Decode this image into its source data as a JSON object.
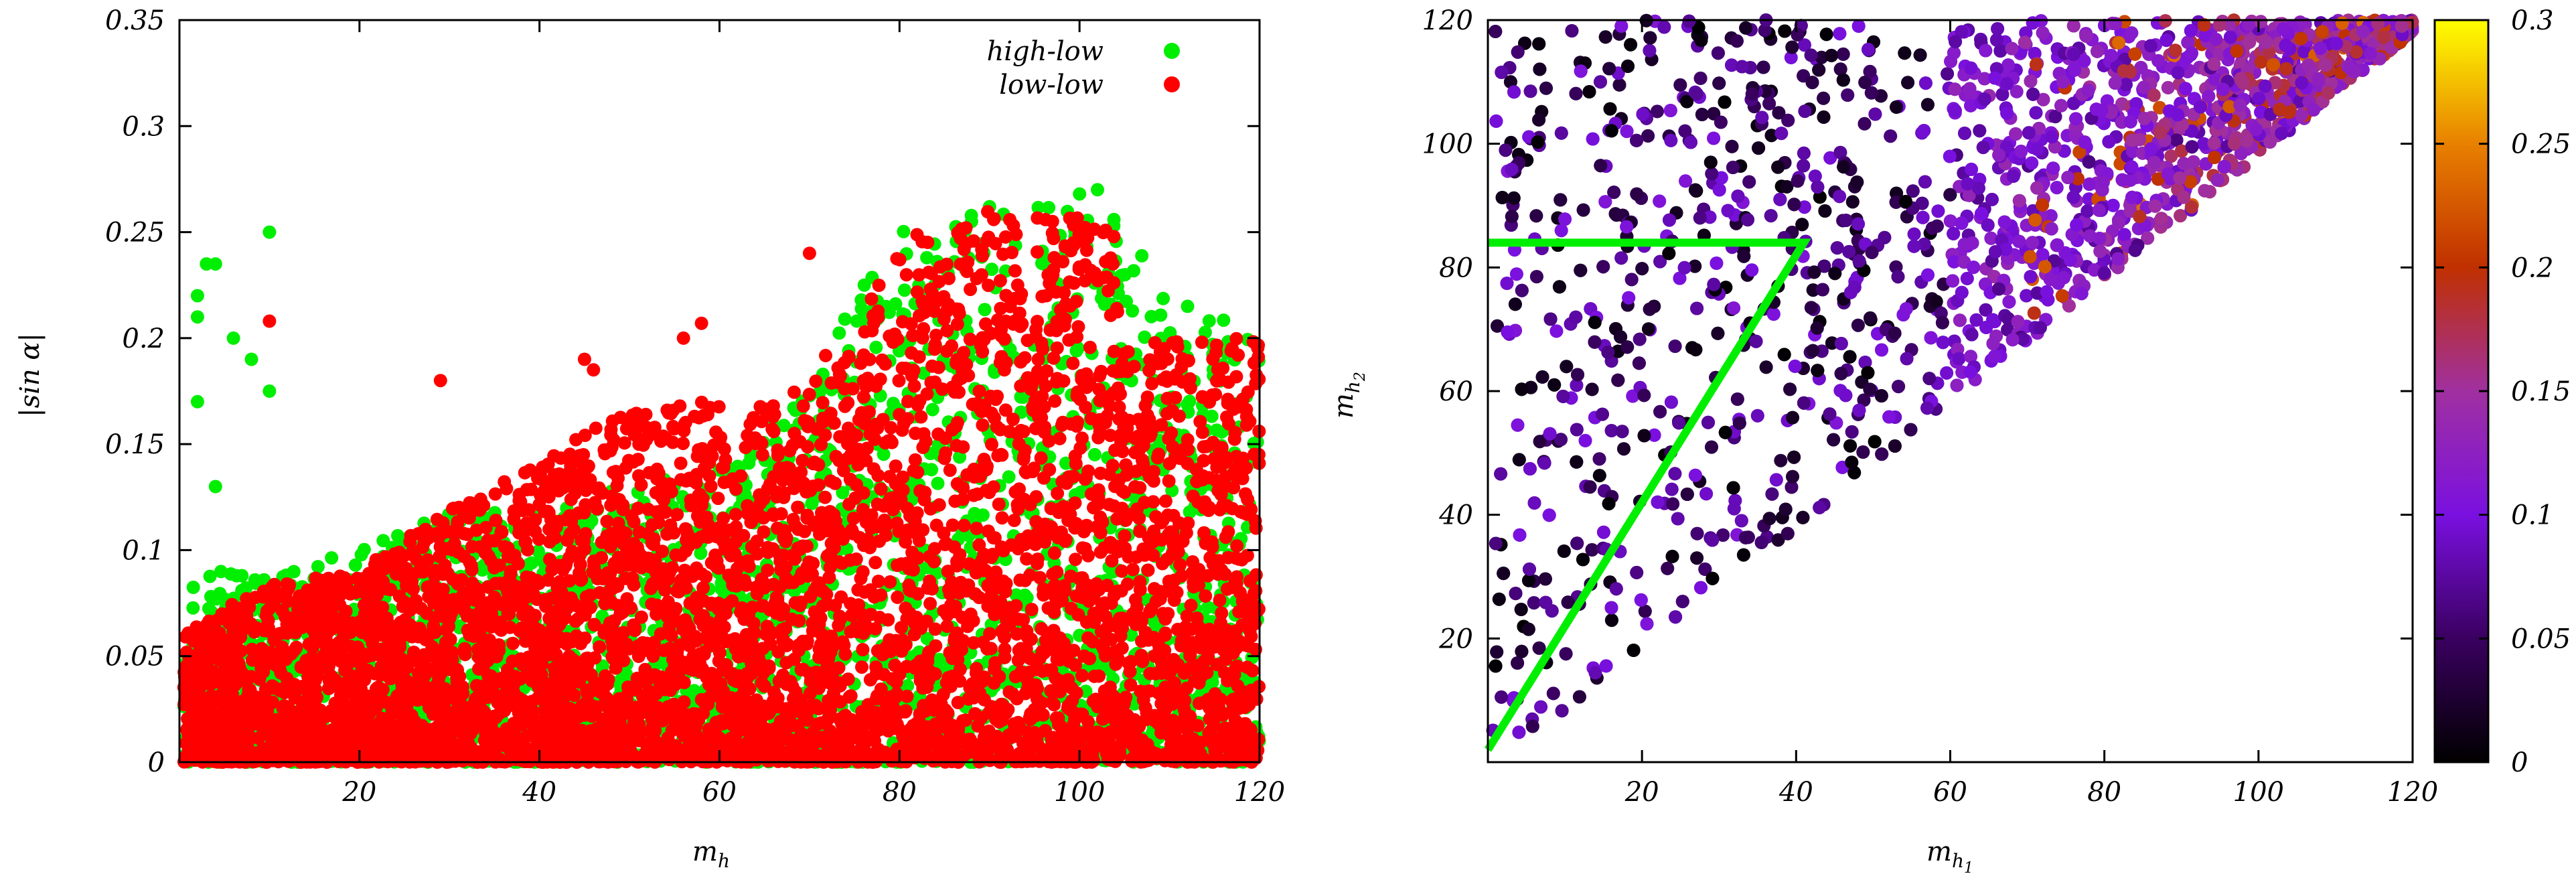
{
  "chart_data": [
    {
      "type": "scatter",
      "xlabel": "m",
      "xlabel_sub": "h",
      "ylabel": "|sin α|",
      "xlim": [
        0,
        120
      ],
      "ylim": [
        0,
        0.35
      ],
      "xticks": [
        "20",
        "40",
        "60",
        "80",
        "100",
        "120"
      ],
      "yticks": [
        "0",
        "0.05",
        "0.1",
        "0.15",
        "0.2",
        "0.25",
        "0.3",
        "0.35"
      ],
      "legend_position": "top-right",
      "series": [
        {
          "name": "high-low",
          "color": "#00ee00",
          "outliers": [
            [
              10,
              0.25
            ],
            [
              3,
              0.235
            ],
            [
              4,
              0.235
            ],
            [
              2,
              0.22
            ],
            [
              2,
              0.21
            ],
            [
              6,
              0.2
            ],
            [
              8,
              0.19
            ],
            [
              10,
              0.175
            ],
            [
              2,
              0.17
            ],
            [
              4,
              0.13
            ],
            [
              100,
              0.268
            ],
            [
              102,
              0.27
            ],
            [
              90,
              0.262
            ],
            [
              112,
              0.215
            ],
            [
              88,
              0.255
            ]
          ],
          "envelope": [
            [
              0,
              0.09
            ],
            [
              10,
              0.09
            ],
            [
              20,
              0.1
            ],
            [
              30,
              0.12
            ],
            [
              40,
              0.12
            ],
            [
              50,
              0.13
            ],
            [
              60,
              0.14
            ],
            [
              63,
              0.14
            ],
            [
              65,
              0.16
            ],
            [
              70,
              0.18
            ],
            [
              75,
              0.22
            ],
            [
              80,
              0.25
            ],
            [
              90,
              0.26
            ],
            [
              100,
              0.265
            ],
            [
              105,
              0.255
            ],
            [
              110,
              0.215
            ],
            [
              120,
              0.21
            ]
          ]
        },
        {
          "name": "low-low",
          "color": "#ff0000",
          "outliers": [
            [
              10,
              0.208
            ],
            [
              29,
              0.18
            ],
            [
              46,
              0.185
            ],
            [
              45,
              0.19
            ],
            [
              56,
              0.2
            ],
            [
              58,
              0.207
            ],
            [
              70,
              0.24
            ],
            [
              97,
              0.255
            ]
          ],
          "envelope": [
            [
              0,
              0.06
            ],
            [
              10,
              0.085
            ],
            [
              20,
              0.09
            ],
            [
              30,
              0.12
            ],
            [
              40,
              0.14
            ],
            [
              50,
              0.17
            ],
            [
              60,
              0.17
            ],
            [
              62,
              0.13
            ],
            [
              63,
              0.165
            ],
            [
              70,
              0.18
            ],
            [
              75,
              0.215
            ],
            [
              80,
              0.245
            ],
            [
              85,
              0.255
            ],
            [
              90,
              0.26
            ],
            [
              100,
              0.26
            ],
            [
              104,
              0.25
            ],
            [
              105,
              0.2
            ],
            [
              110,
              0.2
            ],
            [
              120,
              0.2
            ]
          ]
        }
      ]
    },
    {
      "type": "scatter",
      "xlabel": "m",
      "xlabel_sub": "h",
      "xlabel_subsub": "1",
      "ylabel": "m",
      "ylabel_sub": "h",
      "ylabel_subsub": "2",
      "xlim": [
        0,
        120
      ],
      "ylim": [
        0,
        120
      ],
      "xticks": [
        "20",
        "40",
        "60",
        "80",
        "100",
        "120"
      ],
      "yticks": [
        "20",
        "40",
        "60",
        "80",
        "100",
        "120"
      ],
      "colorbar": {
        "range": [
          0,
          0.3
        ],
        "ticks": [
          "0",
          "0.05",
          "0.1",
          "0.15",
          "0.2",
          "0.25",
          "0.3"
        ],
        "colormap": [
          "#000000",
          "#3a0060",
          "#7a10e0",
          "#a030a0",
          "#c03000",
          "#e88000",
          "#ffff00"
        ]
      },
      "region": "mh2 <= 120 and mh2 >= min(mh1, 0.5*mh1 + ...) — points fill triangle between mh2 = mh1 diagonal and mh2 = 120",
      "green_line": [
        [
          0,
          2
        ],
        [
          41,
          84
        ],
        [
          0,
          84
        ]
      ],
      "green_line_color": "#00ee00"
    }
  ]
}
